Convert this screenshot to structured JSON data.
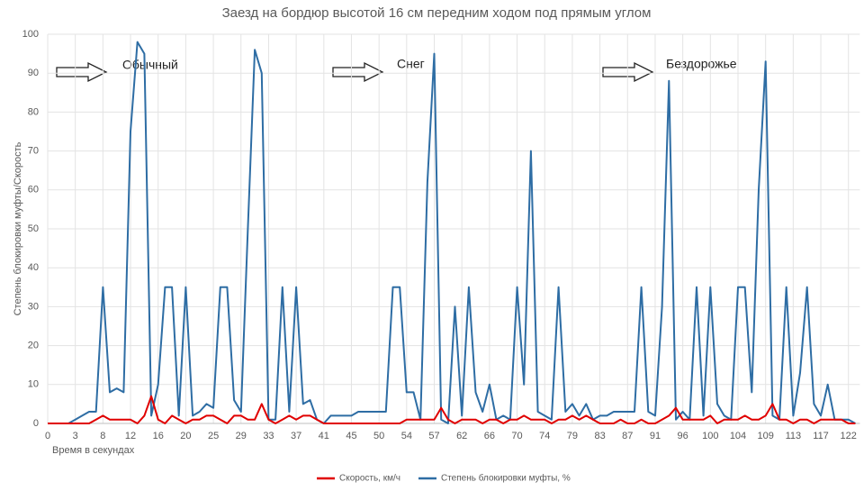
{
  "chart_data": {
    "type": "line",
    "title": "Заезд на бордюр высотой 16 см передним ходом под прямым углом",
    "y_label": "Степень блокировки муфты/Скорость",
    "x_label": "Время в секундах",
    "annotations": [
      "Обычный",
      "Снег",
      "Бездорожье"
    ],
    "categories": [
      "0",
      null,
      null,
      null,
      "3",
      null,
      null,
      null,
      "8",
      null,
      null,
      null,
      "12",
      null,
      null,
      null,
      "16",
      null,
      null,
      null,
      "20",
      null,
      null,
      null,
      "25",
      null,
      null,
      null,
      "29",
      null,
      null,
      null,
      "33",
      null,
      null,
      null,
      "37",
      null,
      null,
      null,
      "41",
      null,
      null,
      null,
      "45",
      null,
      null,
      null,
      "50",
      null,
      null,
      null,
      "54",
      null,
      null,
      null,
      "57",
      null,
      null,
      null,
      "62",
      null,
      null,
      null,
      "66",
      null,
      null,
      null,
      "70",
      null,
      null,
      null,
      "74",
      null,
      null,
      null,
      "79",
      null,
      null,
      null,
      "83",
      null,
      null,
      null,
      "87",
      null,
      null,
      null,
      "91",
      null,
      null,
      null,
      "96",
      null,
      null,
      null,
      "100",
      null,
      null,
      null,
      "104",
      null,
      null,
      null,
      "109",
      null,
      null,
      null,
      "113",
      null,
      null,
      null,
      "117",
      null,
      null,
      null,
      "122",
      null
    ],
    "series": [
      {
        "name": "Скорость, км/ч",
        "color": "#e00000",
        "values": [
          0,
          0,
          0,
          0,
          0,
          0,
          0,
          1,
          2,
          1,
          1,
          1,
          1,
          0,
          2,
          7,
          1,
          0,
          2,
          1,
          0,
          1,
          1,
          2,
          2,
          1,
          0,
          2,
          2,
          1,
          1,
          5,
          1,
          0,
          1,
          2,
          1,
          2,
          2,
          1,
          0,
          0,
          0,
          0,
          0,
          0,
          0,
          0,
          0,
          0,
          0,
          0,
          1,
          1,
          1,
          1,
          1,
          4,
          1,
          0,
          1,
          1,
          1,
          0,
          1,
          1,
          0,
          1,
          1,
          2,
          1,
          1,
          1,
          0,
          1,
          1,
          2,
          1,
          2,
          1,
          0,
          0,
          0,
          1,
          0,
          0,
          1,
          0,
          0,
          1,
          2,
          4,
          1,
          1,
          1,
          1,
          2,
          0,
          1,
          1,
          1,
          2,
          1,
          1,
          2,
          5,
          1,
          1,
          0,
          1,
          1,
          0,
          1,
          1,
          1,
          1,
          0,
          0
        ]
      },
      {
        "name": "Степень блокировки муфты, %",
        "color": "#2e6da4",
        "values": [
          0,
          0,
          0,
          0,
          1,
          2,
          3,
          3,
          35,
          8,
          9,
          8,
          75,
          98,
          95,
          2,
          10,
          35,
          35,
          2,
          35,
          2,
          3,
          5,
          4,
          35,
          35,
          6,
          3,
          50,
          96,
          90,
          1,
          1,
          35,
          3,
          35,
          5,
          6,
          1,
          0,
          2,
          2,
          2,
          2,
          3,
          3,
          3,
          3,
          3,
          35,
          35,
          8,
          8,
          1,
          62,
          95,
          1,
          0,
          30,
          2,
          35,
          8,
          3,
          10,
          1,
          2,
          1,
          35,
          10,
          70,
          3,
          2,
          1,
          35,
          3,
          5,
          2,
          5,
          1,
          2,
          2,
          3,
          3,
          3,
          3,
          35,
          3,
          2,
          30,
          88,
          1,
          3,
          1,
          35,
          2,
          35,
          5,
          2,
          1,
          35,
          35,
          8,
          60,
          93,
          2,
          1,
          35,
          2,
          13,
          35,
          5,
          2,
          10,
          1,
          1,
          1,
          0
        ]
      }
    ],
    "ylim": [
      0,
      100
    ],
    "yticks": [
      0,
      10,
      20,
      30,
      40,
      50,
      60,
      70,
      80,
      90,
      100
    ],
    "grid": true
  }
}
